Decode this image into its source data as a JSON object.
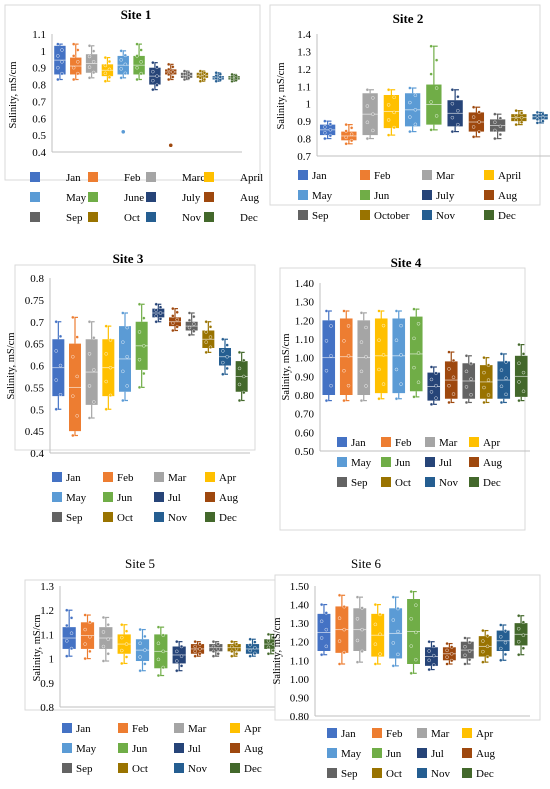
{
  "months": [
    "Jan",
    "Feb",
    "Mar",
    "Apr",
    "May",
    "Jun",
    "Jul",
    "Aug",
    "Sep",
    "Oct",
    "Nov",
    "Dec"
  ],
  "colors": [
    "#4472c4",
    "#ed7d31",
    "#a5a5a5",
    "#ffc000",
    "#5b9bd5",
    "#70ad47",
    "#264478",
    "#9e480e",
    "#636363",
    "#997300",
    "#255e91",
    "#43682b"
  ],
  "chart_data": [
    {
      "type": "box",
      "title": "Site 1",
      "ylabel": "Salinity, mS/cm",
      "ylim": [
        0.4,
        1.1
      ],
      "yticks": [
        "0.4",
        "0.5",
        "0.6",
        "0.7",
        "0.8",
        "0.9",
        "1",
        "1.1"
      ],
      "legend": [
        "Jan",
        "Feb",
        "March",
        "April",
        "May",
        "June",
        "July",
        "Aug",
        "Sep",
        "Oct",
        "Nov",
        "Dec"
      ],
      "boxes": [
        {
          "min": 0.83,
          "q1": 0.86,
          "q3": 1.03,
          "max": 1.04,
          "out": []
        },
        {
          "min": 0.83,
          "q1": 0.86,
          "q3": 0.96,
          "max": 1.04,
          "out": []
        },
        {
          "min": 0.84,
          "q1": 0.87,
          "q3": 0.98,
          "max": 1.03,
          "out": []
        },
        {
          "min": 0.82,
          "q1": 0.85,
          "q3": 0.92,
          "max": 0.96,
          "out": []
        },
        {
          "min": 0.84,
          "q1": 0.86,
          "q3": 0.97,
          "max": 1.0,
          "out": [
            0.52
          ]
        },
        {
          "min": 0.83,
          "q1": 0.86,
          "q3": 0.97,
          "max": 1.04,
          "out": []
        },
        {
          "min": 0.77,
          "q1": 0.8,
          "q3": 0.9,
          "max": 0.93,
          "out": []
        },
        {
          "min": 0.83,
          "q1": 0.86,
          "q3": 0.89,
          "max": 0.92,
          "out": [
            0.44
          ]
        },
        {
          "min": 0.83,
          "q1": 0.84,
          "q3": 0.87,
          "max": 0.88,
          "out": []
        },
        {
          "min": 0.82,
          "q1": 0.84,
          "q3": 0.87,
          "max": 0.88,
          "out": []
        },
        {
          "min": 0.82,
          "q1": 0.83,
          "q3": 0.85,
          "max": 0.87,
          "out": []
        },
        {
          "min": 0.82,
          "q1": 0.83,
          "q3": 0.85,
          "max": 0.86,
          "out": []
        }
      ]
    },
    {
      "type": "box",
      "title": "Site 2",
      "ylabel": "Salinity, mS/cm",
      "ylim": [
        0.7,
        1.4
      ],
      "yticks": [
        "0.7",
        "0.8",
        "0.9",
        "1",
        "1.1",
        "1.2",
        "1.3",
        "1.4"
      ],
      "legend": [
        "Jan",
        "Feb",
        "Mar",
        "April",
        "May",
        "Jun",
        "July",
        "Aug",
        "Sep",
        "October",
        "Nov",
        "Dec"
      ],
      "boxes": [
        {
          "min": 0.8,
          "q1": 0.82,
          "q3": 0.88,
          "max": 0.9,
          "out": []
        },
        {
          "min": 0.77,
          "q1": 0.79,
          "q3": 0.84,
          "max": 0.88,
          "out": []
        },
        {
          "min": 0.8,
          "q1": 0.82,
          "q3": 1.06,
          "max": 1.08,
          "out": []
        },
        {
          "min": 0.82,
          "q1": 0.86,
          "q3": 1.05,
          "max": 1.08,
          "out": []
        },
        {
          "min": 0.84,
          "q1": 0.87,
          "q3": 1.06,
          "max": 1.09,
          "out": []
        },
        {
          "min": 0.85,
          "q1": 0.88,
          "q3": 1.11,
          "max": 1.33,
          "out": []
        },
        {
          "min": 0.84,
          "q1": 0.87,
          "q3": 1.02,
          "max": 1.08,
          "out": []
        },
        {
          "min": 0.81,
          "q1": 0.84,
          "q3": 0.95,
          "max": 0.98,
          "out": []
        },
        {
          "min": 0.8,
          "q1": 0.84,
          "q3": 0.91,
          "max": 0.94,
          "out": []
        },
        {
          "min": 0.88,
          "q1": 0.9,
          "q3": 0.94,
          "max": 0.96,
          "out": []
        },
        {
          "min": 0.89,
          "q1": 0.91,
          "q3": 0.94,
          "max": 0.95,
          "out": []
        },
        {
          "min": 0.88,
          "q1": 0.9,
          "q3": 0.95,
          "max": 0.97,
          "out": []
        }
      ]
    },
    {
      "type": "box",
      "title": "Site 3",
      "ylabel": "Salinity, mS/cm",
      "ylim": [
        0.4,
        0.8
      ],
      "yticks": [
        "0.4",
        "0.45",
        "0.5",
        "0.55",
        "0.6",
        "0.65",
        "0.7",
        "0.75",
        "0.8"
      ],
      "legend": [
        "Jan",
        "Feb",
        "Mar",
        "Apr",
        "May",
        "Jun",
        "Jul",
        "Aug",
        "Sep",
        "Oct",
        "Nov",
        "Dec"
      ],
      "boxes": [
        {
          "min": 0.5,
          "q1": 0.53,
          "q3": 0.66,
          "max": 0.7,
          "out": []
        },
        {
          "min": 0.44,
          "q1": 0.45,
          "q3": 0.65,
          "max": 0.71,
          "out": []
        },
        {
          "min": 0.48,
          "q1": 0.51,
          "q3": 0.66,
          "max": 0.7,
          "out": []
        },
        {
          "min": 0.5,
          "q1": 0.53,
          "q3": 0.66,
          "max": 0.69,
          "out": []
        },
        {
          "min": 0.52,
          "q1": 0.54,
          "q3": 0.69,
          "max": 0.72,
          "out": []
        },
        {
          "min": 0.55,
          "q1": 0.59,
          "q3": 0.7,
          "max": 0.74,
          "out": []
        },
        {
          "min": 0.7,
          "q1": 0.71,
          "q3": 0.73,
          "max": 0.74,
          "out": []
        },
        {
          "min": 0.68,
          "q1": 0.69,
          "q3": 0.71,
          "max": 0.73,
          "out": []
        },
        {
          "min": 0.67,
          "q1": 0.68,
          "q3": 0.7,
          "max": 0.72,
          "out": []
        },
        {
          "min": 0.63,
          "q1": 0.64,
          "q3": 0.68,
          "max": 0.7,
          "out": []
        },
        {
          "min": 0.58,
          "q1": 0.6,
          "q3": 0.64,
          "max": 0.66,
          "out": []
        },
        {
          "min": 0.52,
          "q1": 0.54,
          "q3": 0.61,
          "max": 0.63,
          "out": []
        }
      ]
    },
    {
      "type": "box",
      "title": "Site 4",
      "ylabel": "Salinity, mS/cm",
      "ylim": [
        0.5,
        1.4
      ],
      "yticks": [
        "0.50",
        "0.60",
        "0.70",
        "0.80",
        "0.90",
        "1.00",
        "1.10",
        "1.20",
        "1.30",
        "1.40"
      ],
      "legend": [
        "Jan",
        "Feb",
        "Mar",
        "Apr",
        "May",
        "Jun",
        "Jul",
        "Aug",
        "Sep",
        "Oct",
        "Nov",
        "Dec"
      ],
      "boxes": [
        {
          "min": 0.77,
          "q1": 0.8,
          "q3": 1.2,
          "max": 1.25,
          "out": []
        },
        {
          "min": 0.77,
          "q1": 0.8,
          "q3": 1.21,
          "max": 1.25,
          "out": []
        },
        {
          "min": 0.77,
          "q1": 0.8,
          "q3": 1.2,
          "max": 1.24,
          "out": []
        },
        {
          "min": 0.78,
          "q1": 0.81,
          "q3": 1.21,
          "max": 1.25,
          "out": []
        },
        {
          "min": 0.78,
          "q1": 0.81,
          "q3": 1.21,
          "max": 1.25,
          "out": []
        },
        {
          "min": 0.79,
          "q1": 0.82,
          "q3": 1.22,
          "max": 1.26,
          "out": []
        },
        {
          "min": 0.75,
          "q1": 0.77,
          "q3": 0.92,
          "max": 0.95,
          "out": []
        },
        {
          "min": 0.76,
          "q1": 0.78,
          "q3": 0.98,
          "max": 1.03,
          "out": []
        },
        {
          "min": 0.76,
          "q1": 0.78,
          "q3": 0.97,
          "max": 1.01,
          "out": []
        },
        {
          "min": 0.76,
          "q1": 0.78,
          "q3": 0.96,
          "max": 1.0,
          "out": []
        },
        {
          "min": 0.76,
          "q1": 0.78,
          "q3": 0.98,
          "max": 1.02,
          "out": []
        },
        {
          "min": 0.77,
          "q1": 0.79,
          "q3": 1.01,
          "max": 1.07,
          "out": []
        }
      ]
    },
    {
      "type": "box",
      "title": "Site 5",
      "ylabel": "Salinity, mS/cm",
      "ylim": [
        0.8,
        1.3
      ],
      "yticks": [
        "0.8",
        "0.9",
        "1",
        "1.1",
        "1.2",
        "1.3"
      ],
      "legend": [
        "Jan",
        "Feb",
        "Mar",
        "Apr",
        "May",
        "Jun",
        "Jul",
        "Aug",
        "Sep",
        "Oct",
        "Nov",
        "Dec"
      ],
      "boxes": [
        {
          "min": 1.01,
          "q1": 1.04,
          "q3": 1.13,
          "max": 1.2,
          "out": []
        },
        {
          "min": 1.0,
          "q1": 1.04,
          "q3": 1.15,
          "max": 1.18,
          "out": []
        },
        {
          "min": 0.99,
          "q1": 1.04,
          "q3": 1.13,
          "max": 1.17,
          "out": []
        },
        {
          "min": 0.98,
          "q1": 1.02,
          "q3": 1.1,
          "max": 1.14,
          "out": []
        },
        {
          "min": 0.95,
          "q1": 0.99,
          "q3": 1.08,
          "max": 1.12,
          "out": []
        },
        {
          "min": 0.93,
          "q1": 0.96,
          "q3": 1.1,
          "max": 1.13,
          "out": []
        },
        {
          "min": 0.95,
          "q1": 0.98,
          "q3": 1.05,
          "max": 1.07,
          "out": []
        },
        {
          "min": 1.01,
          "q1": 1.02,
          "q3": 1.06,
          "max": 1.07,
          "out": []
        },
        {
          "min": 1.01,
          "q1": 1.03,
          "q3": 1.06,
          "max": 1.07,
          "out": []
        },
        {
          "min": 1.01,
          "q1": 1.03,
          "q3": 1.06,
          "max": 1.07,
          "out": []
        },
        {
          "min": 1.01,
          "q1": 1.02,
          "q3": 1.06,
          "max": 1.08,
          "out": []
        },
        {
          "min": 1.02,
          "q1": 1.04,
          "q3": 1.08,
          "max": 1.1,
          "out": []
        }
      ]
    },
    {
      "type": "box",
      "title": "Site 6",
      "ylabel": "Salinity, mS/cm",
      "ylim": [
        0.8,
        1.5
      ],
      "yticks": [
        "0.80",
        "0.90",
        "1.00",
        "1.10",
        "1.20",
        "1.30",
        "1.40",
        "1.50"
      ],
      "legend": [
        "Jan",
        "Feb",
        "Mar",
        "Apr",
        "May",
        "Jun",
        "Jul",
        "Aug",
        "Sep",
        "Oct",
        "Nov",
        "Dec"
      ],
      "boxes": [
        {
          "min": 1.13,
          "q1": 1.15,
          "q3": 1.35,
          "max": 1.4,
          "out": []
        },
        {
          "min": 1.08,
          "q1": 1.14,
          "q3": 1.39,
          "max": 1.45,
          "out": []
        },
        {
          "min": 1.09,
          "q1": 1.15,
          "q3": 1.38,
          "max": 1.44,
          "out": []
        },
        {
          "min": 1.08,
          "q1": 1.12,
          "q3": 1.35,
          "max": 1.4,
          "out": []
        },
        {
          "min": 1.07,
          "q1": 1.11,
          "q3": 1.38,
          "max": 1.44,
          "out": []
        },
        {
          "min": 1.03,
          "q1": 1.08,
          "q3": 1.43,
          "max": 1.47,
          "out": []
        },
        {
          "min": 1.05,
          "q1": 1.07,
          "q3": 1.17,
          "max": 1.2,
          "out": []
        },
        {
          "min": 1.08,
          "q1": 1.1,
          "q3": 1.17,
          "max": 1.19,
          "out": []
        },
        {
          "min": 1.08,
          "q1": 1.11,
          "q3": 1.2,
          "max": 1.22,
          "out": []
        },
        {
          "min": 1.09,
          "q1": 1.12,
          "q3": 1.23,
          "max": 1.26,
          "out": []
        },
        {
          "min": 1.1,
          "q1": 1.15,
          "q3": 1.26,
          "max": 1.29,
          "out": []
        },
        {
          "min": 1.13,
          "q1": 1.18,
          "q3": 1.3,
          "max": 1.34,
          "out": []
        }
      ]
    }
  ]
}
